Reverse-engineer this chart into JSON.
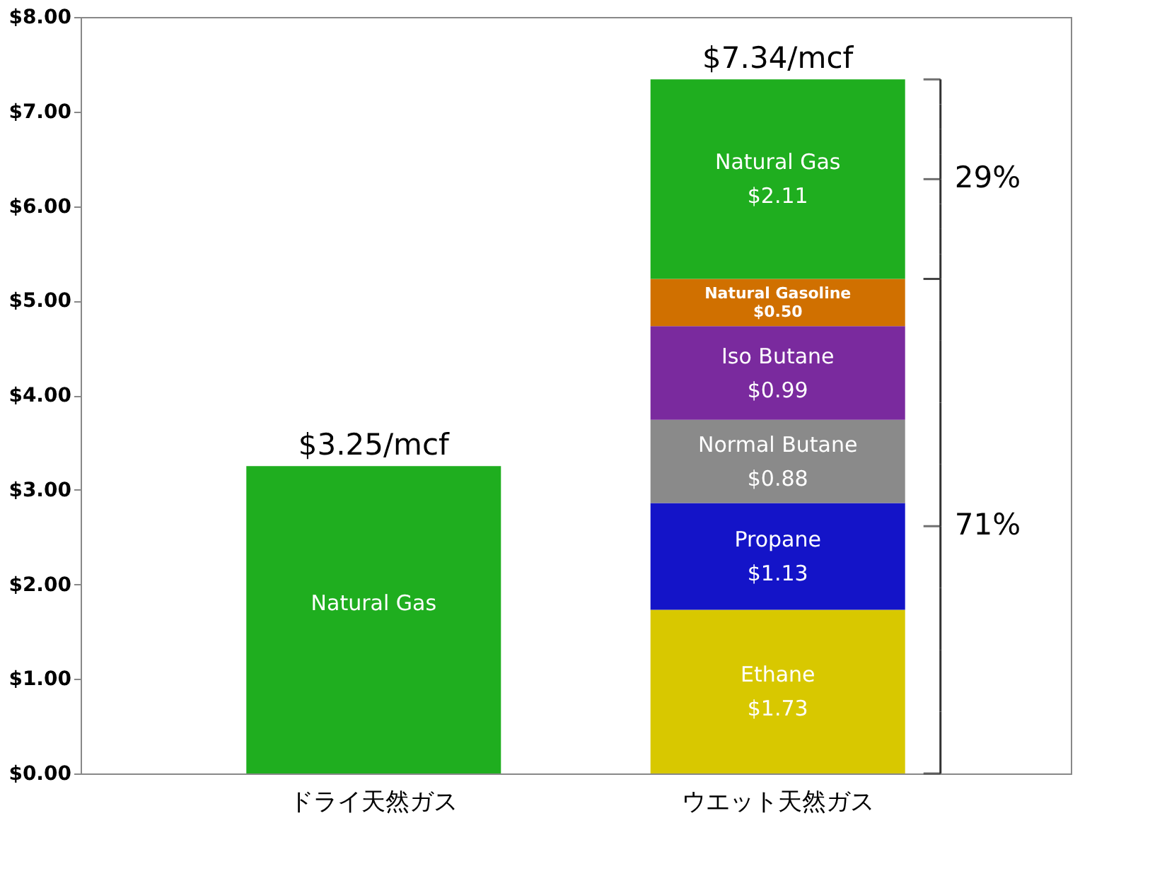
{
  "chart_data": {
    "type": "bar",
    "stacked": true,
    "categories": [
      "ドライ天然ガス",
      "ウエット天然ガス"
    ],
    "series": [
      {
        "name": "Ethane",
        "color": "#d8c800",
        "values": [
          null,
          1.73
        ],
        "value_labels": [
          null,
          "$1.73"
        ]
      },
      {
        "name": "Propane",
        "color": "#1414c8",
        "values": [
          null,
          1.13
        ],
        "value_labels": [
          null,
          "$1.13"
        ]
      },
      {
        "name": "Normal Butane",
        "color": "#8a8a8a",
        "values": [
          null,
          0.88
        ],
        "value_labels": [
          null,
          "$0.88"
        ]
      },
      {
        "name": "Iso Butane",
        "color": "#7a2a9e",
        "values": [
          null,
          0.99
        ],
        "value_labels": [
          null,
          "$0.99"
        ]
      },
      {
        "name": "Natural Gasoline",
        "color": "#d07000",
        "values": [
          null,
          0.5
        ],
        "value_labels": [
          null,
          "$0.50"
        ]
      },
      {
        "name": "Natural Gas",
        "color": "#1fae1f",
        "values": [
          3.25,
          2.11
        ],
        "value_labels": [
          null,
          "$2.11"
        ]
      }
    ],
    "totals": [
      "$3.25/mcf",
      "$7.34/mcf"
    ],
    "annotations": [
      "29%",
      "71%"
    ],
    "ylim": [
      0,
      8
    ],
    "yticks": [
      {
        "value": 0,
        "label": "$0.00"
      },
      {
        "value": 1,
        "label": "$1.00"
      },
      {
        "value": 2,
        "label": "$2.00"
      },
      {
        "value": 3,
        "label": "$3.00"
      },
      {
        "value": 4,
        "label": "$4.00"
      },
      {
        "value": 5,
        "label": "$5.00"
      },
      {
        "value": 6,
        "label": "$6.00"
      },
      {
        "value": 7,
        "label": "$7.00"
      },
      {
        "value": 8,
        "label": "$8.00"
      }
    ],
    "grid": false,
    "legend": false
  }
}
